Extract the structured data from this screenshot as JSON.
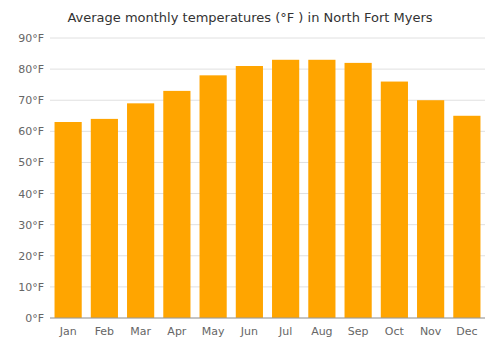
{
  "chart_data": {
    "type": "bar",
    "title": "Average monthly temperatures (°F ) in North Fort Myers",
    "categories": [
      "Jan",
      "Feb",
      "Mar",
      "Apr",
      "May",
      "Jun",
      "Jul",
      "Aug",
      "Sep",
      "Oct",
      "Nov",
      "Dec"
    ],
    "values": [
      63,
      64,
      69,
      73,
      78,
      81,
      83,
      83,
      82,
      76,
      70,
      65
    ],
    "color": "#FFA500",
    "ylim": [
      0,
      90
    ],
    "yticks": [
      {
        "value": 0,
        "label": "0°F"
      },
      {
        "value": 10,
        "label": "10°F"
      },
      {
        "value": 20,
        "label": "20°F"
      },
      {
        "value": 30,
        "label": "30°F"
      },
      {
        "value": 40,
        "label": "40°F"
      },
      {
        "value": 50,
        "label": "50°F"
      },
      {
        "value": 60,
        "label": "60°F"
      },
      {
        "value": 70,
        "label": "70°F"
      },
      {
        "value": 80,
        "label": "80°F"
      },
      {
        "value": 90,
        "label": "90°F"
      }
    ],
    "grid": true
  }
}
